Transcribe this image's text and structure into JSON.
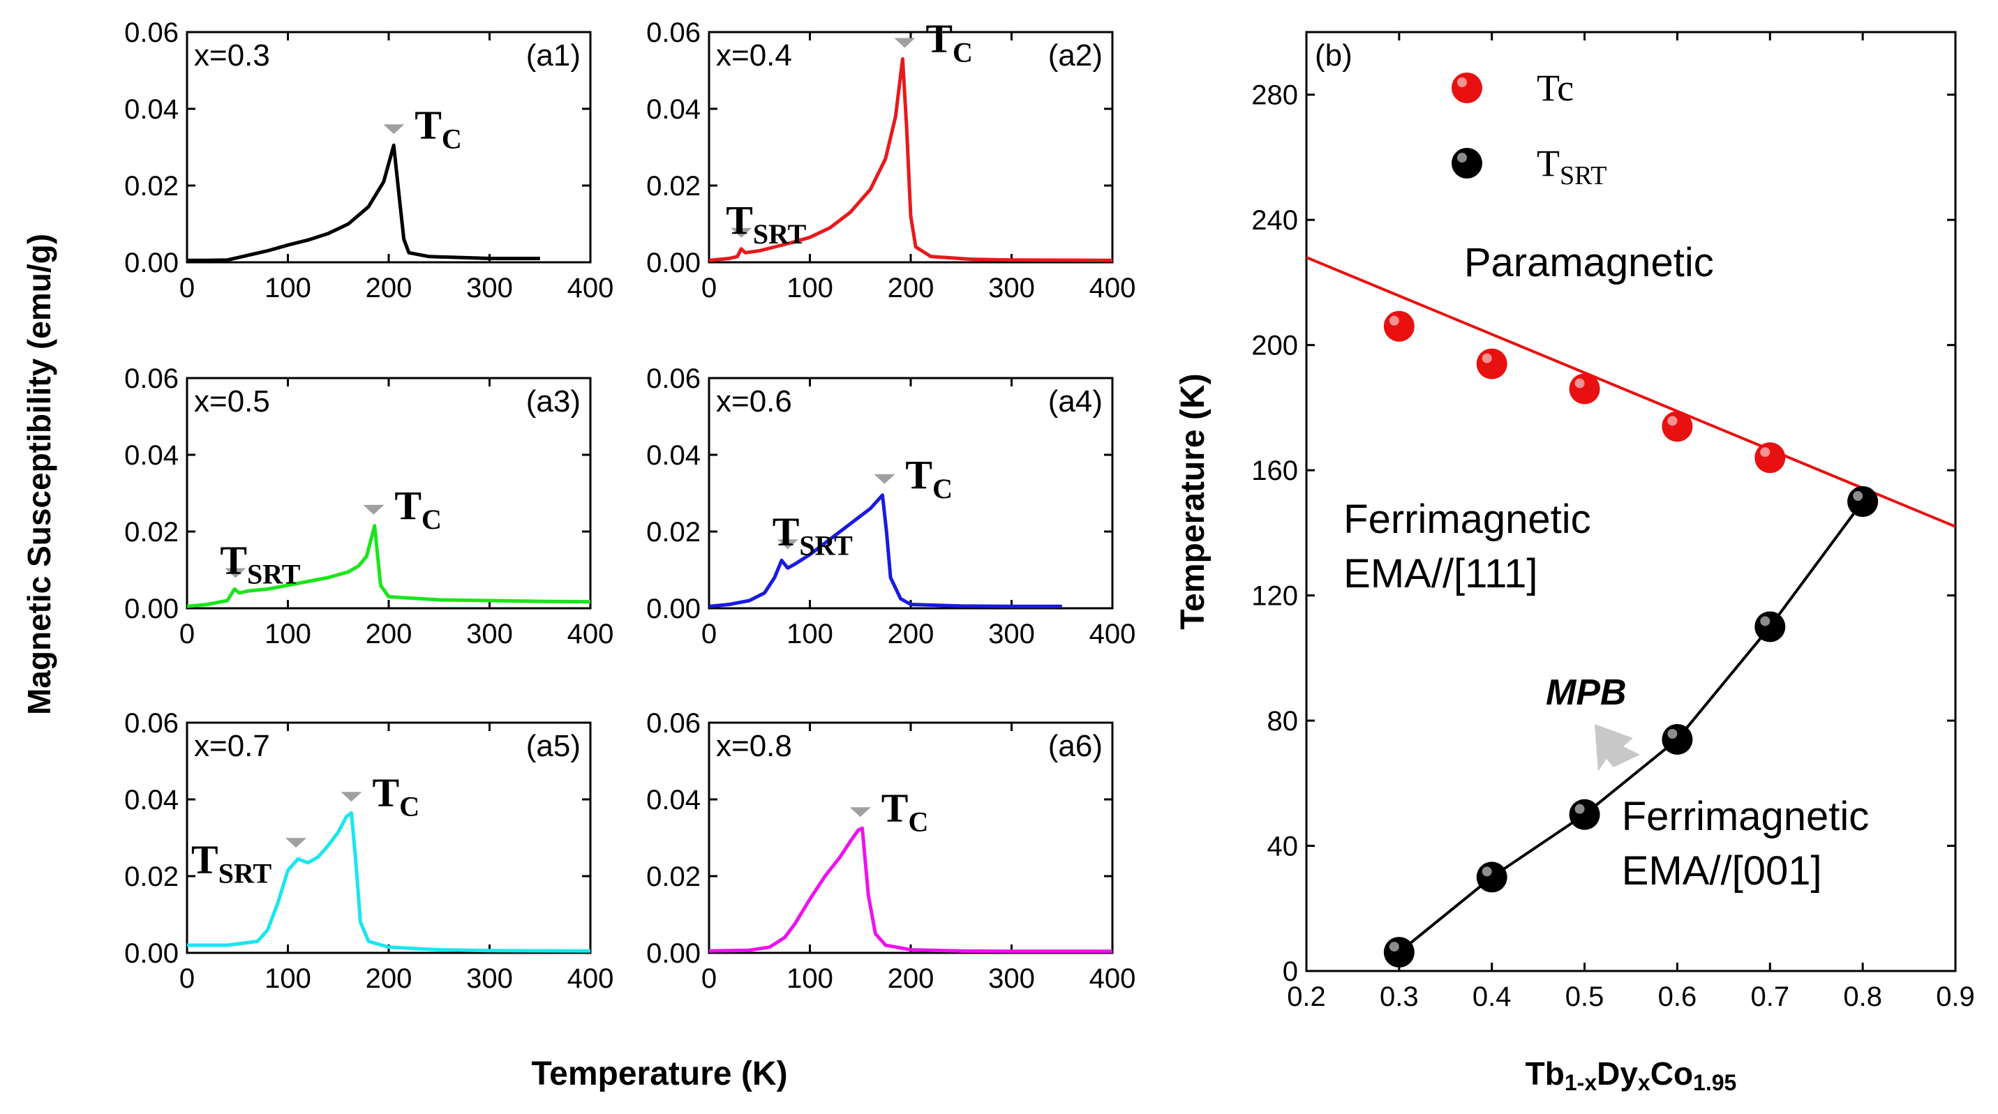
{
  "figure": {
    "left_ylabel": "Magnetic Susceptibility (emu/g)",
    "left_xlabel": "Temperature (K)"
  },
  "chart_data": [
    {
      "type": "line",
      "id": "a1",
      "panel_label": "(a1)",
      "x_label_text": "x=0.3",
      "color": "#000000",
      "xlim": [
        0,
        400
      ],
      "ylim": [
        0,
        0.06
      ],
      "xticks": [
        "0",
        "100",
        "200",
        "300",
        "400"
      ],
      "yticks": [
        "0.00",
        "0.02",
        "0.04",
        "0.06"
      ],
      "x": [
        0,
        20,
        40,
        50,
        80,
        100,
        120,
        140,
        160,
        180,
        195,
        205,
        210,
        215,
        220,
        240,
        300,
        350
      ],
      "y": [
        0.0005,
        0.0005,
        0.0006,
        0.0012,
        0.003,
        0.0045,
        0.0058,
        0.0075,
        0.01,
        0.0145,
        0.021,
        0.0305,
        0.018,
        0.006,
        0.0025,
        0.0015,
        0.001,
        0.001
      ],
      "annotations": [
        {
          "text": "T",
          "sub": "C",
          "x": 205,
          "y": 0.0305
        }
      ]
    },
    {
      "type": "line",
      "id": "a2",
      "panel_label": "(a2)",
      "x_label_text": "x=0.4",
      "color": "#e8191c",
      "xlim": [
        0,
        400
      ],
      "ylim": [
        0,
        0.06
      ],
      "xticks": [
        "0",
        "100",
        "200",
        "300",
        "400"
      ],
      "yticks": [
        "0.00",
        "0.02",
        "0.04",
        "0.06"
      ],
      "x": [
        0,
        20,
        28,
        32,
        36,
        50,
        80,
        100,
        120,
        140,
        160,
        175,
        185,
        192,
        196,
        200,
        205,
        220,
        260,
        300,
        400
      ],
      "y": [
        0.0005,
        0.001,
        0.0015,
        0.0035,
        0.0025,
        0.003,
        0.005,
        0.0065,
        0.009,
        0.013,
        0.019,
        0.027,
        0.038,
        0.053,
        0.035,
        0.012,
        0.004,
        0.0015,
        0.0008,
        0.0006,
        0.0005
      ],
      "annotations": [
        {
          "text": "T",
          "sub": "C",
          "x": 194,
          "y": 0.053
        },
        {
          "text": "T",
          "sub": "SRT",
          "x": 32,
          "y": 0.0035
        }
      ]
    },
    {
      "type": "line",
      "id": "a3",
      "panel_label": "(a3)",
      "x_label_text": "x=0.5",
      "color": "#19e619",
      "xlim": [
        0,
        400
      ],
      "ylim": [
        0,
        0.06
      ],
      "xticks": [
        "0",
        "100",
        "200",
        "300",
        "400"
      ],
      "yticks": [
        "0.00",
        "0.02",
        "0.04",
        "0.06"
      ],
      "x": [
        0,
        20,
        40,
        47,
        52,
        60,
        80,
        100,
        120,
        140,
        160,
        170,
        178,
        182,
        186,
        192,
        200,
        250,
        300,
        350,
        400
      ],
      "y": [
        0.0005,
        0.001,
        0.002,
        0.005,
        0.004,
        0.0045,
        0.005,
        0.006,
        0.007,
        0.008,
        0.0095,
        0.011,
        0.0135,
        0.0175,
        0.0215,
        0.006,
        0.003,
        0.0022,
        0.002,
        0.0018,
        0.0017
      ],
      "annotations": [
        {
          "text": "T",
          "sub": "C",
          "x": 185,
          "y": 0.0215
        },
        {
          "text": "T",
          "sub": "SRT",
          "x": 48,
          "y": 0.005
        }
      ]
    },
    {
      "type": "line",
      "id": "a4",
      "panel_label": "(a4)",
      "x_label_text": "x=0.6",
      "color": "#1a1ae0",
      "xlim": [
        0,
        400
      ],
      "ylim": [
        0,
        0.06
      ],
      "xticks": [
        "0",
        "100",
        "200",
        "300",
        "400"
      ],
      "yticks": [
        "0.00",
        "0.02",
        "0.04",
        "0.06"
      ],
      "x": [
        0,
        20,
        40,
        55,
        65,
        72,
        78,
        85,
        100,
        120,
        140,
        160,
        172,
        176,
        180,
        190,
        200,
        250,
        300,
        350
      ],
      "y": [
        0.0005,
        0.001,
        0.002,
        0.004,
        0.008,
        0.0125,
        0.0105,
        0.0115,
        0.014,
        0.018,
        0.022,
        0.026,
        0.0295,
        0.02,
        0.008,
        0.0025,
        0.001,
        0.0006,
        0.0005,
        0.0005
      ],
      "annotations": [
        {
          "text": "T",
          "sub": "C",
          "x": 174,
          "y": 0.0295
        },
        {
          "text": "T",
          "sub": "SRT",
          "x": 78,
          "y": 0.0125
        }
      ]
    },
    {
      "type": "line",
      "id": "a5",
      "panel_label": "(a5)",
      "x_label_text": "x=0.7",
      "color": "#19e6f0",
      "xlim": [
        0,
        400
      ],
      "ylim": [
        0,
        0.06
      ],
      "xticks": [
        "0",
        "100",
        "200",
        "300",
        "400"
      ],
      "yticks": [
        "0.00",
        "0.02",
        "0.04",
        "0.06"
      ],
      "x": [
        0,
        40,
        70,
        80,
        90,
        100,
        110,
        120,
        130,
        140,
        150,
        158,
        163,
        167,
        172,
        180,
        200,
        250,
        300,
        400
      ],
      "y": [
        0.002,
        0.002,
        0.003,
        0.006,
        0.013,
        0.0215,
        0.0245,
        0.0235,
        0.025,
        0.028,
        0.0315,
        0.0355,
        0.0365,
        0.025,
        0.008,
        0.003,
        0.0015,
        0.0008,
        0.0006,
        0.0005
      ],
      "annotations": [
        {
          "text": "T",
          "sub": "C",
          "x": 163,
          "y": 0.0365
        },
        {
          "text": "T",
          "sub": "SRT",
          "x": 108,
          "y": 0.0245
        }
      ]
    },
    {
      "type": "line",
      "id": "a6",
      "panel_label": "(a6)",
      "x_label_text": "x=0.8",
      "color": "#ee11ee",
      "xlim": [
        0,
        400
      ],
      "ylim": [
        0,
        0.06
      ],
      "xticks": [
        "0",
        "100",
        "200",
        "300",
        "400"
      ],
      "yticks": [
        "0.00",
        "0.02",
        "0.04",
        "0.06"
      ],
      "x": [
        0,
        40,
        60,
        75,
        85,
        100,
        115,
        130,
        140,
        148,
        152,
        158,
        165,
        175,
        200,
        250,
        300,
        400
      ],
      "y": [
        0.0005,
        0.0007,
        0.0015,
        0.004,
        0.0075,
        0.014,
        0.02,
        0.025,
        0.029,
        0.032,
        0.0325,
        0.015,
        0.005,
        0.002,
        0.0008,
        0.0005,
        0.0004,
        0.0004
      ],
      "annotations": [
        {
          "text": "T",
          "sub": "C",
          "x": 150,
          "y": 0.0325
        }
      ]
    },
    {
      "type": "scatter",
      "id": "b",
      "panel_label": "(b)",
      "xlabel": {
        "base": "Tb",
        "parts": [
          [
            "1-x",
            "sub"
          ],
          [
            "Dy",
            ""
          ],
          [
            "x",
            "sub"
          ],
          [
            "Co",
            ""
          ],
          [
            "1.95",
            "sub"
          ]
        ]
      },
      "ylabel": "Temperature (K)",
      "xlim": [
        0.2,
        0.9
      ],
      "ylim": [
        0,
        300
      ],
      "xticks": [
        "0.2",
        "0.3",
        "0.4",
        "0.5",
        "0.6",
        "0.7",
        "0.8",
        "0.9"
      ],
      "yticks": [
        "0",
        "40",
        "80",
        "120",
        "160",
        "200",
        "240",
        "280"
      ],
      "series": [
        {
          "name": "Tc",
          "name_sub": "",
          "color": "#e81010",
          "x": [
            0.3,
            0.4,
            0.5,
            0.6,
            0.7,
            0.8
          ],
          "y": [
            206,
            194,
            186,
            174,
            164,
            150
          ],
          "fit": [
            [
              0.2,
              228
            ],
            [
              0.9,
              142
            ]
          ]
        },
        {
          "name": "T",
          "name_sub": "SRT",
          "color": "#000000",
          "x": [
            0.3,
            0.4,
            0.5,
            0.6,
            0.7,
            0.8
          ],
          "y": [
            6,
            30,
            50,
            74,
            110,
            150
          ],
          "fit": [
            [
              0.3,
              6
            ],
            [
              0.4,
              30
            ],
            [
              0.5,
              50
            ],
            [
              0.6,
              74
            ],
            [
              0.7,
              110
            ],
            [
              0.8,
              150
            ]
          ]
        }
      ],
      "region_labels": [
        {
          "lines": [
            "Paramagnetic"
          ],
          "x": 0.37,
          "y": 222
        },
        {
          "lines": [
            "Ferrimagnetic",
            "EMA//[111]"
          ],
          "x": 0.24,
          "y": 140
        },
        {
          "lines": [
            "Ferrimagnetic",
            "EMA//[001]"
          ],
          "x": 0.54,
          "y": 45
        }
      ],
      "mpb_label": "MPB"
    }
  ]
}
